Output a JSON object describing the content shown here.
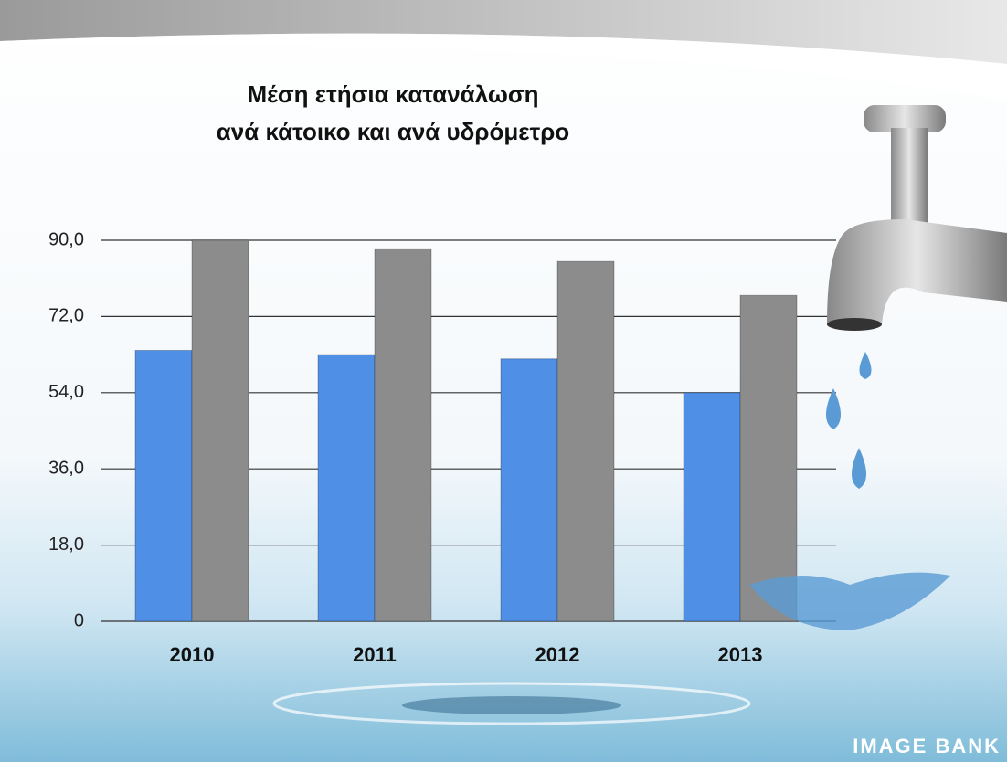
{
  "chart_data": {
    "type": "bar",
    "title": [
      "Μέση ετήσια κατανάλωση",
      "ανά κάτοικο και ανά υδρόμετρο"
    ],
    "categories": [
      "2010",
      "2011",
      "2012",
      "2013"
    ],
    "series": [
      {
        "color": "#4f8fe6",
        "values": [
          64,
          63,
          62,
          54
        ]
      },
      {
        "color": "#8c8c8c",
        "values": [
          90,
          88,
          85,
          77
        ]
      }
    ],
    "ylim": [
      0,
      90
    ],
    "yticks": [
      0,
      {
        "value": 18,
        "label": "18,0"
      },
      {
        "value": 36,
        "label": "36,0"
      },
      {
        "value": 54,
        "label": "54,0"
      },
      {
        "value": 72,
        "label": "72,0"
      },
      {
        "value": 90,
        "label": "90,0"
      }
    ],
    "grid": true,
    "watermark": "IMAGE BANK"
  }
}
